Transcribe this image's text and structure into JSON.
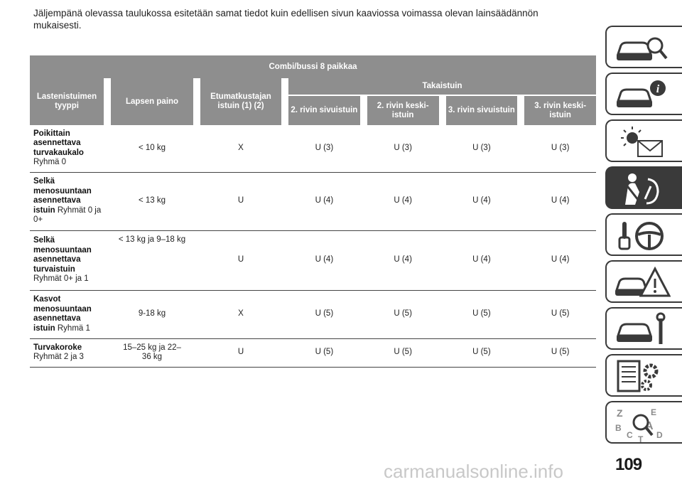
{
  "intro_text": "Jäljempänä olevassa taulukossa esitetään samat tiedot kuin edellisen sivun kaaviossa voimassa olevan lainsäädännön mukaisesti.",
  "table": {
    "header_top": "Combi/bussi 8 paikkaa",
    "header_type": "Lastenistuimen tyyppi",
    "header_weight": "Lapsen paino",
    "header_front": "Etumatkustajan istuin (1) (2)",
    "header_rear": "Takaistuin",
    "rear_positions": [
      "2. rivin sivuistuin",
      "2. rivin keski-istuin",
      "3. rivin sivuistuin",
      "3. rivin keski-istuin"
    ],
    "rows": [
      {
        "type_bold": "Poikittain asennettava turvakaukalo",
        "type_group": "Ryhmä 0",
        "weight": "< 10 kg",
        "front": "X",
        "rear": [
          "U (3)",
          "U (3)",
          "U (3)",
          "U (3)"
        ]
      },
      {
        "type_bold": "Selkä menosuuntaan asennettava istuin",
        "type_group": "Ryhmät 0 ja 0+",
        "weight": "< 13 kg",
        "front": "U",
        "rear": [
          "U (4)",
          "U (4)",
          "U (4)",
          "U (4)"
        ]
      },
      {
        "type_bold": "Selkä menosuuntaan asennettava turvaistuin",
        "type_group": "Ryhmät 0+ ja 1",
        "weight": "< 13 kg ja 9–18 kg",
        "front": "U",
        "rear": [
          "U (4)",
          "U (4)",
          "U (4)",
          "U (4)"
        ]
      },
      {
        "type_bold": "Kasvot menosuuntaan asennettava istuin",
        "type_group": "Ryhmä 1",
        "weight": "9-18 kg",
        "front": "X",
        "rear": [
          "U (5)",
          "U (5)",
          "U (5)",
          "U (5)"
        ]
      },
      {
        "type_bold": "Turvakoroke",
        "type_group": "Ryhmät 2 ja 3",
        "weight": "15–25 kg ja 22–36 kg",
        "front": "U",
        "rear": [
          "U (5)",
          "U (5)",
          "U (5)",
          "U (5)"
        ]
      }
    ]
  },
  "chapter_tabs": [
    {
      "icon": "car-search-icon",
      "active": false
    },
    {
      "icon": "car-info-icon",
      "active": false
    },
    {
      "icon": "warning-light-message-icon",
      "active": false
    },
    {
      "icon": "seatbelt-airbag-icon",
      "active": true
    },
    {
      "icon": "key-steering-wheel-icon",
      "active": false
    },
    {
      "icon": "car-crash-warning-icon",
      "active": false
    },
    {
      "icon": "car-wrench-icon",
      "active": false
    },
    {
      "icon": "specs-gear-icon",
      "active": false
    },
    {
      "icon": "index-letters-icon",
      "active": false
    }
  ],
  "page_number": "109",
  "watermark": "carmanualsonline.info",
  "colors": {
    "header_bg": "#8e8e8e",
    "tab_border": "#3a3a3a",
    "active_tab": "#3a3a3a"
  }
}
